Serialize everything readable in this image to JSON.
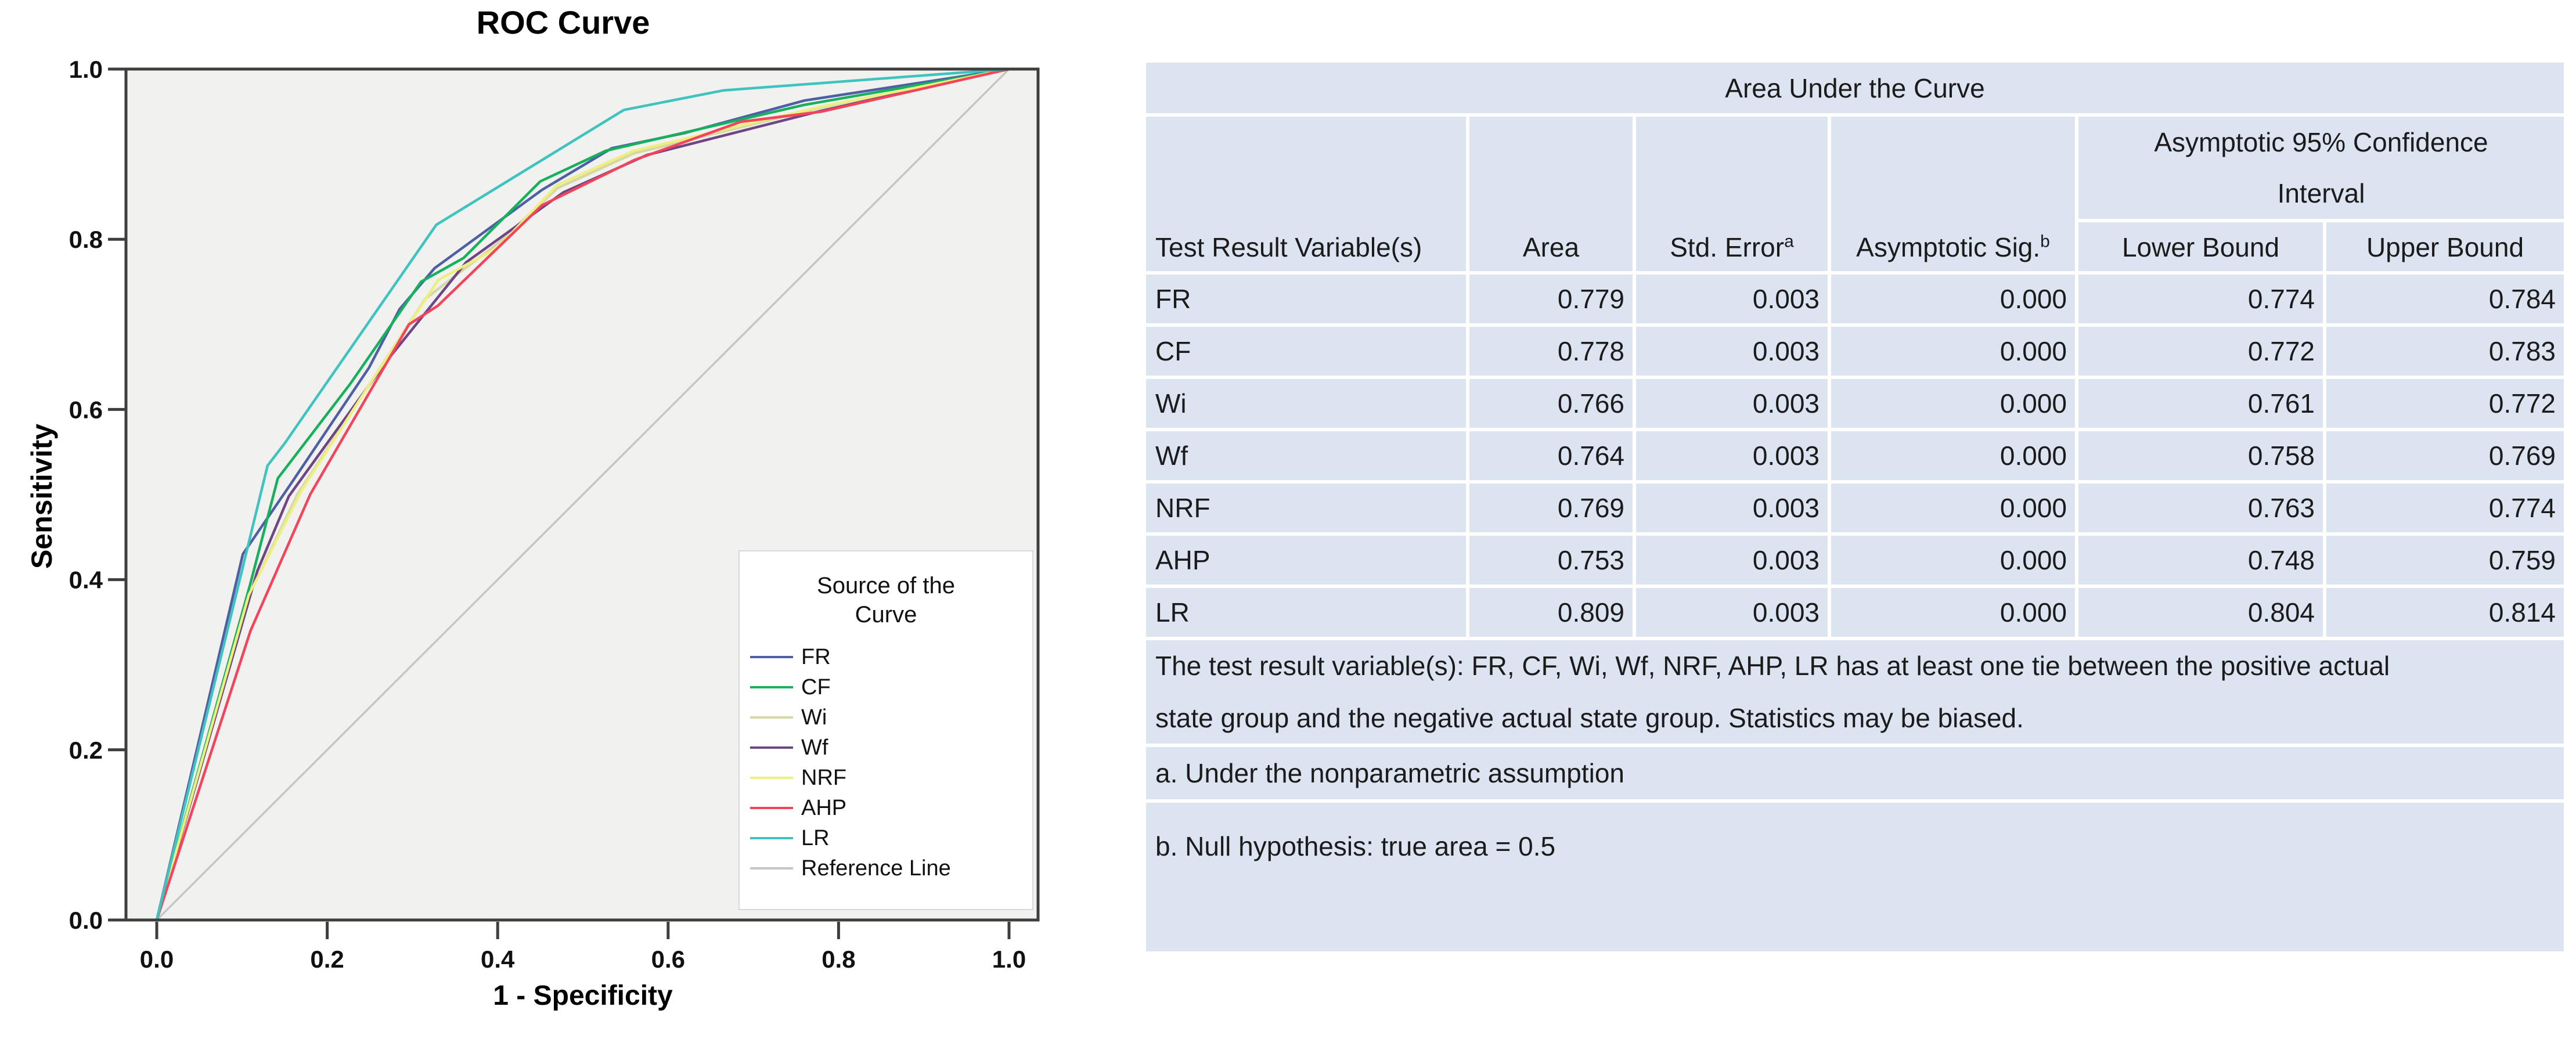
{
  "chart_data": {
    "type": "line",
    "title": "ROC Curve",
    "xlabel": "1 - Specificity",
    "ylabel": "Sensitivity",
    "xlim": [
      0,
      1
    ],
    "ylim": [
      0,
      1
    ],
    "x_tick_labels": [
      "0.0",
      "0.2",
      "0.4",
      "0.6",
      "0.8",
      "1.0"
    ],
    "y_tick_labels": [
      "0.0",
      "0.2",
      "0.4",
      "0.6",
      "0.8",
      "1.0"
    ],
    "grid": false,
    "plot_bg": "#f1f1ef",
    "frame_color": "#3e3e3e",
    "legend": {
      "position": "inside-bottom-right",
      "title_lines": [
        "Source of the",
        "Curve"
      ]
    },
    "series": [
      {
        "name": "FR",
        "color": "#4e5fa5",
        "points": [
          [
            0,
            0
          ],
          [
            0.101,
            0.43
          ],
          [
            0.159,
            0.515
          ],
          [
            0.249,
            0.649
          ],
          [
            0.285,
            0.718
          ],
          [
            0.326,
            0.766
          ],
          [
            0.452,
            0.858
          ],
          [
            0.534,
            0.907
          ],
          [
            0.62,
            0.925
          ],
          [
            0.76,
            0.963
          ],
          [
            1,
            1
          ]
        ]
      },
      {
        "name": "CF",
        "color": "#17b05c",
        "points": [
          [
            0,
            0
          ],
          [
            0.11,
            0.396
          ],
          [
            0.142,
            0.519
          ],
          [
            0.227,
            0.63
          ],
          [
            0.31,
            0.75
          ],
          [
            0.36,
            0.778
          ],
          [
            0.45,
            0.868
          ],
          [
            0.527,
            0.904
          ],
          [
            0.76,
            0.958
          ],
          [
            1,
            1
          ]
        ]
      },
      {
        "name": "Wi",
        "color": "#d5d7a6",
        "points": [
          [
            0,
            0
          ],
          [
            0.112,
            0.39
          ],
          [
            0.165,
            0.5
          ],
          [
            0.24,
            0.615
          ],
          [
            0.315,
            0.73
          ],
          [
            0.4,
            0.795
          ],
          [
            0.47,
            0.86
          ],
          [
            0.56,
            0.901
          ],
          [
            0.78,
            0.955
          ],
          [
            1,
            1
          ]
        ]
      },
      {
        "name": "Wf",
        "color": "#6f4585",
        "points": [
          [
            0,
            0
          ],
          [
            0.118,
            0.41
          ],
          [
            0.155,
            0.498
          ],
          [
            0.269,
            0.656
          ],
          [
            0.363,
            0.773
          ],
          [
            0.477,
            0.855
          ],
          [
            0.575,
            0.899
          ],
          [
            0.78,
            0.951
          ],
          [
            1,
            1
          ]
        ]
      },
      {
        "name": "NRF",
        "color": "#edef7e",
        "points": [
          [
            0,
            0
          ],
          [
            0.108,
            0.382
          ],
          [
            0.17,
            0.505
          ],
          [
            0.25,
            0.63
          ],
          [
            0.33,
            0.752
          ],
          [
            0.4,
            0.79
          ],
          [
            0.47,
            0.864
          ],
          [
            0.56,
            0.904
          ],
          [
            0.78,
            0.956
          ],
          [
            1,
            1
          ]
        ]
      },
      {
        "name": "AHP",
        "color": "#f4435a",
        "points": [
          [
            0,
            0
          ],
          [
            0.11,
            0.34
          ],
          [
            0.18,
            0.5
          ],
          [
            0.296,
            0.7
          ],
          [
            0.33,
            0.722
          ],
          [
            0.452,
            0.84
          ],
          [
            0.56,
            0.893
          ],
          [
            0.685,
            0.938
          ],
          [
            0.78,
            0.95
          ],
          [
            1,
            1
          ]
        ]
      },
      {
        "name": "LR",
        "color": "#3fc3bf",
        "points": [
          [
            0,
            0
          ],
          [
            0.13,
            0.534
          ],
          [
            0.15,
            0.56
          ],
          [
            0.328,
            0.817
          ],
          [
            0.548,
            0.952
          ],
          [
            0.665,
            0.975
          ],
          [
            1,
            1
          ]
        ]
      }
    ],
    "reference_line": {
      "name": "Reference Line",
      "color": "#c6c6c6",
      "points": [
        [
          0,
          0
        ],
        [
          1,
          1
        ]
      ]
    }
  },
  "table": {
    "title": "Area Under the Curve",
    "bg_color": "#dde4f1",
    "columns": [
      {
        "label": "Test Result Variable(s)",
        "sup": ""
      },
      {
        "label": "Area",
        "sup": ""
      },
      {
        "label": "Std. Error",
        "sup": "a"
      },
      {
        "label": "Asymptotic Sig.",
        "sup": "b"
      }
    ],
    "ci_header": {
      "line1": "Asymptotic 95% Confidence",
      "line2": "Interval",
      "columns": [
        "Lower Bound",
        "Upper Bound"
      ]
    },
    "rows": [
      {
        "variable": "FR",
        "area": "0.779",
        "std_error": "0.003",
        "sig": "0.000",
        "lower": "0.774",
        "upper": "0.784"
      },
      {
        "variable": "CF",
        "area": "0.778",
        "std_error": "0.003",
        "sig": "0.000",
        "lower": "0.772",
        "upper": "0.783"
      },
      {
        "variable": "Wi",
        "area": "0.766",
        "std_error": "0.003",
        "sig": "0.000",
        "lower": "0.761",
        "upper": "0.772"
      },
      {
        "variable": "Wf",
        "area": "0.764",
        "std_error": "0.003",
        "sig": "0.000",
        "lower": "0.758",
        "upper": "0.769"
      },
      {
        "variable": "NRF",
        "area": "0.769",
        "std_error": "0.003",
        "sig": "0.000",
        "lower": "0.763",
        "upper": "0.774"
      },
      {
        "variable": "AHP",
        "area": "0.753",
        "std_error": "0.003",
        "sig": "0.000",
        "lower": "0.748",
        "upper": "0.759"
      },
      {
        "variable": "LR",
        "area": "0.809",
        "std_error": "0.003",
        "sig": "0.000",
        "lower": "0.804",
        "upper": "0.814"
      }
    ],
    "footnotes": [
      "The test result variable(s): FR, CF, Wi, Wf, NRF, AHP, LR has at least one tie between the positive actual state group and the negative actual state group. Statistics may be biased.",
      "a. Under the nonparametric assumption",
      "b. Null hypothesis: true area = 0.5"
    ]
  }
}
